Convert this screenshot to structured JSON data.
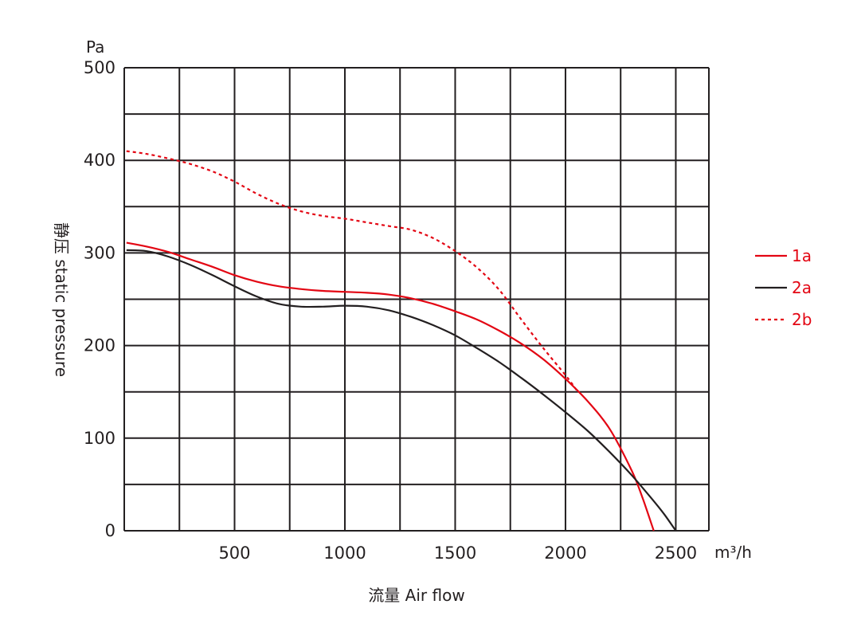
{
  "chart_data": {
    "type": "line",
    "title": "",
    "xlabel": "流量 Air flow",
    "ylabel": "静压 static pressure",
    "x_unit": "m³/h",
    "y_unit": "Pa",
    "xlim": [
      0,
      2650
    ],
    "ylim": [
      0,
      500
    ],
    "x_ticks": [
      500,
      1000,
      1500,
      2000,
      2500
    ],
    "y_ticks": [
      0,
      100,
      200,
      300,
      400,
      500
    ],
    "x_tick_labels": [
      "500",
      "1000",
      "1500",
      "2000",
      "2500"
    ],
    "y_tick_labels": [
      "0",
      "100",
      "200",
      "300",
      "400",
      "500"
    ],
    "grid": true,
    "legend_position": "right",
    "series": [
      {
        "name": "1a",
        "color": "#e30613",
        "style": "solid",
        "points": [
          [
            10,
            311
          ],
          [
            100,
            307
          ],
          [
            200,
            301
          ],
          [
            300,
            293
          ],
          [
            400,
            285
          ],
          [
            500,
            276
          ],
          [
            600,
            269
          ],
          [
            700,
            264
          ],
          [
            800,
            261
          ],
          [
            900,
            259
          ],
          [
            1000,
            258
          ],
          [
            1100,
            257
          ],
          [
            1200,
            255
          ],
          [
            1300,
            251
          ],
          [
            1400,
            245
          ],
          [
            1500,
            237
          ],
          [
            1600,
            228
          ],
          [
            1700,
            216
          ],
          [
            1800,
            202
          ],
          [
            1900,
            185
          ],
          [
            2000,
            164
          ],
          [
            2100,
            140
          ],
          [
            2200,
            110
          ],
          [
            2300,
            65
          ],
          [
            2350,
            35
          ],
          [
            2400,
            0
          ]
        ]
      },
      {
        "name": "2a",
        "color": "#231f20",
        "style": "solid",
        "points": [
          [
            10,
            303
          ],
          [
            100,
            302
          ],
          [
            200,
            296
          ],
          [
            300,
            287
          ],
          [
            400,
            276
          ],
          [
            500,
            264
          ],
          [
            600,
            253
          ],
          [
            700,
            245
          ],
          [
            800,
            242
          ],
          [
            900,
            242
          ],
          [
            1000,
            243
          ],
          [
            1100,
            242
          ],
          [
            1200,
            238
          ],
          [
            1300,
            231
          ],
          [
            1400,
            222
          ],
          [
            1500,
            211
          ],
          [
            1600,
            197
          ],
          [
            1700,
            182
          ],
          [
            1800,
            165
          ],
          [
            1900,
            147
          ],
          [
            2000,
            128
          ],
          [
            2100,
            108
          ],
          [
            2200,
            85
          ],
          [
            2300,
            60
          ],
          [
            2400,
            32
          ],
          [
            2450,
            17
          ],
          [
            2500,
            0
          ]
        ]
      },
      {
        "name": "2b",
        "color": "#e30613",
        "style": "dashed",
        "points": [
          [
            10,
            410
          ],
          [
            100,
            407
          ],
          [
            200,
            402
          ],
          [
            300,
            396
          ],
          [
            400,
            388
          ],
          [
            500,
            377
          ],
          [
            600,
            364
          ],
          [
            700,
            353
          ],
          [
            800,
            345
          ],
          [
            900,
            340
          ],
          [
            1000,
            337
          ],
          [
            1100,
            333
          ],
          [
            1200,
            329
          ],
          [
            1300,
            325
          ],
          [
            1400,
            316
          ],
          [
            1500,
            302
          ],
          [
            1600,
            284
          ],
          [
            1700,
            260
          ],
          [
            1800,
            228
          ],
          [
            1900,
            197
          ],
          [
            2000,
            168
          ],
          [
            2050,
            152
          ]
        ]
      }
    ]
  }
}
